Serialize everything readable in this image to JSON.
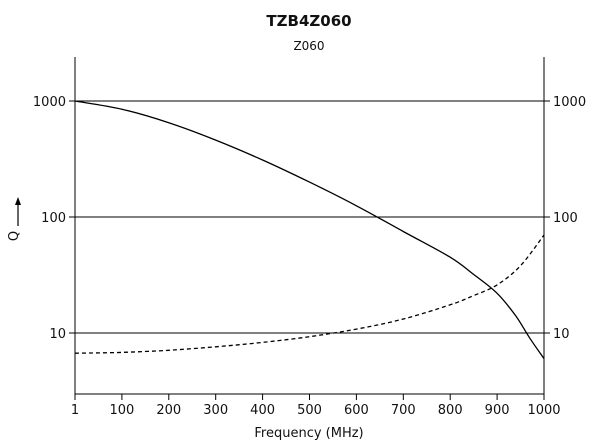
{
  "chart_data": {
    "type": "line",
    "title": "TZB4Z060",
    "subtitle": "Z060",
    "xlabel": "Frequency (MHz)",
    "ylabel": "Q",
    "xlim": [
      1,
      1000
    ],
    "ylim": [
      4,
      2300
    ],
    "yscale": "log",
    "grid": "horizontal",
    "x_ticks": [
      1,
      100,
      200,
      300,
      400,
      500,
      600,
      700,
      800,
      900,
      1000
    ],
    "y_ticks": [
      10,
      100,
      1000
    ],
    "x_tick_labels": [
      "1",
      "100",
      "200",
      "300",
      "400",
      "500",
      "600",
      "700",
      "800",
      "900",
      "1000"
    ],
    "y_tick_labels": [
      "10",
      "100",
      "1000"
    ],
    "series": [
      {
        "style": "solid",
        "x": [
          1,
          100,
          200,
          300,
          400,
          500,
          600,
          700,
          800,
          850,
          900,
          940,
          970,
          1000
        ],
        "y": [
          1000,
          850,
          650,
          460,
          310,
          200,
          125,
          75,
          45,
          32,
          22,
          14,
          9,
          6
        ]
      },
      {
        "style": "dashed",
        "x": [
          1,
          100,
          200,
          300,
          400,
          500,
          600,
          700,
          800,
          850,
          900,
          950,
          1000
        ],
        "y": [
          6.7,
          6.8,
          7.1,
          7.6,
          8.3,
          9.3,
          10.8,
          13.2,
          17.5,
          21,
          26,
          38,
          70
        ]
      }
    ]
  }
}
